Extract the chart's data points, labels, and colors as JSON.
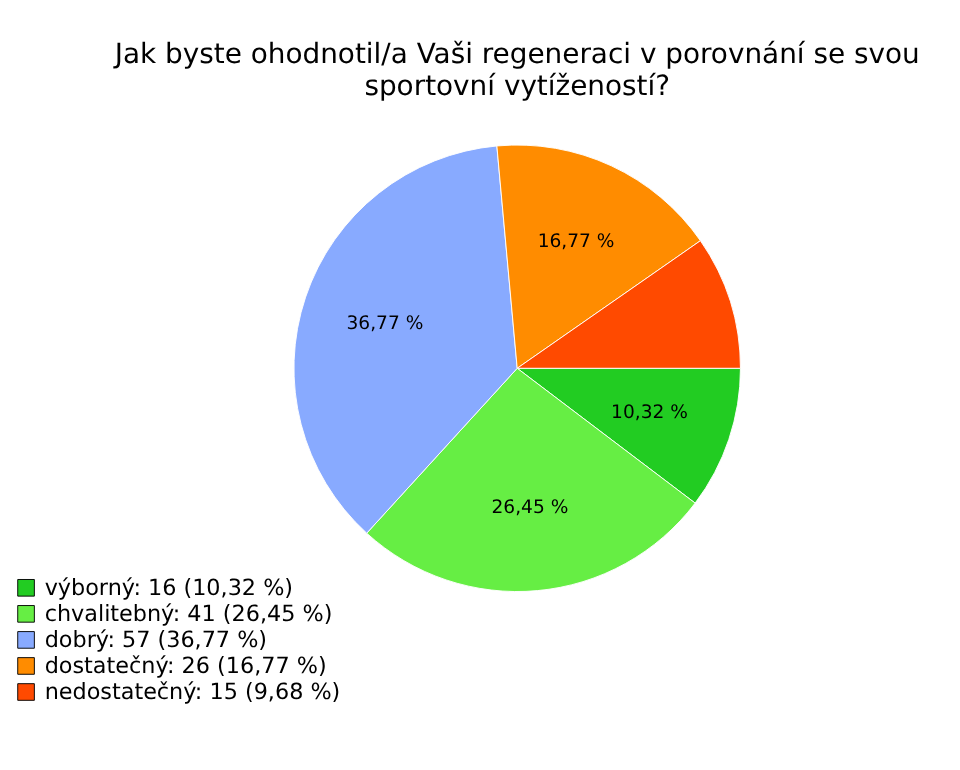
{
  "chart_data": {
    "type": "pie",
    "title": "Jak byste ohodnotil/a Vaši regeneraci v porovnání se svou sportovní vytížeností?",
    "categories": [
      "výborný: 16 (10,32 %)",
      "chvalitebný: 41 (26,45 %)",
      "dobrý: 57 (36,77 %)",
      "dostatečný: 26 (16,77 %)",
      "nedostatečný: 15 (9,68 %)"
    ],
    "values": [
      10.32,
      26.45,
      36.77,
      16.77,
      9.68
    ],
    "value_labels": [
      "10,32 %",
      "26,45 %",
      "36,77 %",
      "16,77 %",
      null
    ],
    "colors": [
      "#22cc22",
      "#66ee44",
      "#88aaff",
      "#ff8c00",
      "#ff4a00"
    ],
    "legend": "bottom left"
  }
}
